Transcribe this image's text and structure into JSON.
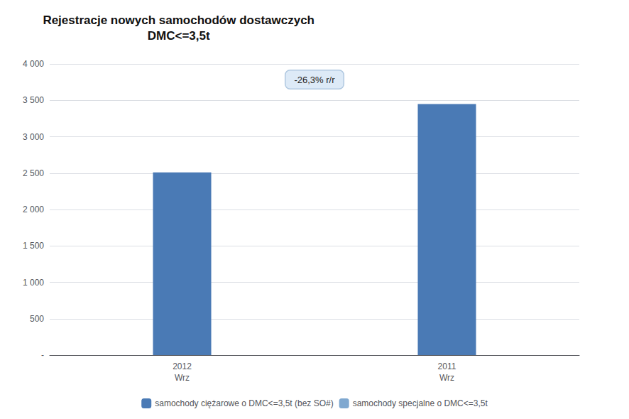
{
  "chart_data": {
    "type": "bar",
    "title": "Rejestracje nowych samochodów dostawczych\nDMC<=3,5t",
    "categories": [
      "2012\nWrz",
      "2011\nWrz"
    ],
    "series": [
      {
        "name": "samochody ciężarowe o DMC<=3,5t (bez SO#)",
        "color": "#4a7ab5",
        "values": [
          2510,
          3450
        ]
      },
      {
        "name": "samochody specjalne o DMC<=3,5t",
        "color": "#7fa8d0",
        "values": [
          null,
          null
        ]
      }
    ],
    "ylim": [
      0,
      4000
    ],
    "yticks": [
      {
        "value": 0,
        "label": "-"
      },
      500,
      {
        "value": 1000,
        "label": "1 000"
      },
      {
        "value": 1500,
        "label": "1 500"
      },
      {
        "value": 2000,
        "label": "2 000"
      },
      {
        "value": 2500,
        "label": "2 500"
      },
      {
        "value": 3000,
        "label": "3 000"
      },
      {
        "value": 3500,
        "label": "3 500"
      },
      {
        "value": 4000,
        "label": "4 000"
      }
    ],
    "annotation": "-26,3% r/r",
    "legend": "bottom",
    "grid": true
  }
}
